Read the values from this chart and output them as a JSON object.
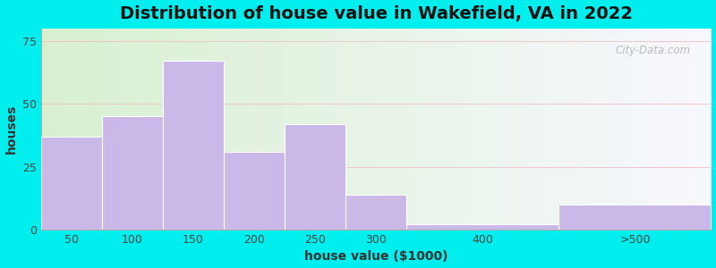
{
  "title": "Distribution of house value in Wakefield, VA in 2022",
  "xlabel": "house value ($1000)",
  "ylabel": "houses",
  "bar_labels": [
    "50",
    "100",
    "150",
    "200",
    "250",
    "300",
    "400",
    ">500"
  ],
  "bar_values": [
    37,
    45,
    67,
    31,
    42,
    14,
    2,
    10
  ],
  "bar_edges": [
    25,
    75,
    125,
    175,
    225,
    275,
    325,
    450,
    575
  ],
  "bar_color": "#c9b8e8",
  "bar_edgecolor": "#ffffff",
  "ylim": [
    0,
    80
  ],
  "yticks": [
    0,
    25,
    50,
    75
  ],
  "bg_outer": "#00eeee",
  "bg_plot_color": "#eef8ee",
  "grid_color": "#f0c0c0",
  "title_fontsize": 14,
  "axis_fontsize": 10,
  "tick_fontsize": 9,
  "watermark_text": "City-Data.com"
}
